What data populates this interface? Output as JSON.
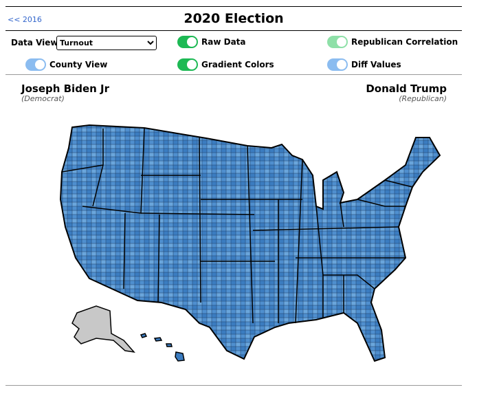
{
  "header": {
    "back_link": "<< 2016",
    "title": "2020 Election"
  },
  "controls": {
    "data_view_label": "Data View:",
    "data_view_value": "Turnout",
    "toggles": [
      {
        "label": "Raw Data"
      },
      {
        "label": "Republican Correlation"
      },
      {
        "label": "County View"
      },
      {
        "label": "Gradient Colors"
      },
      {
        "label": "Diff Values"
      }
    ]
  },
  "candidates": {
    "left": {
      "name": "Joseph Biden Jr",
      "party": "(Democrat)"
    },
    "right": {
      "name": "Donald Trump",
      "party": "(Republican)"
    }
  }
}
